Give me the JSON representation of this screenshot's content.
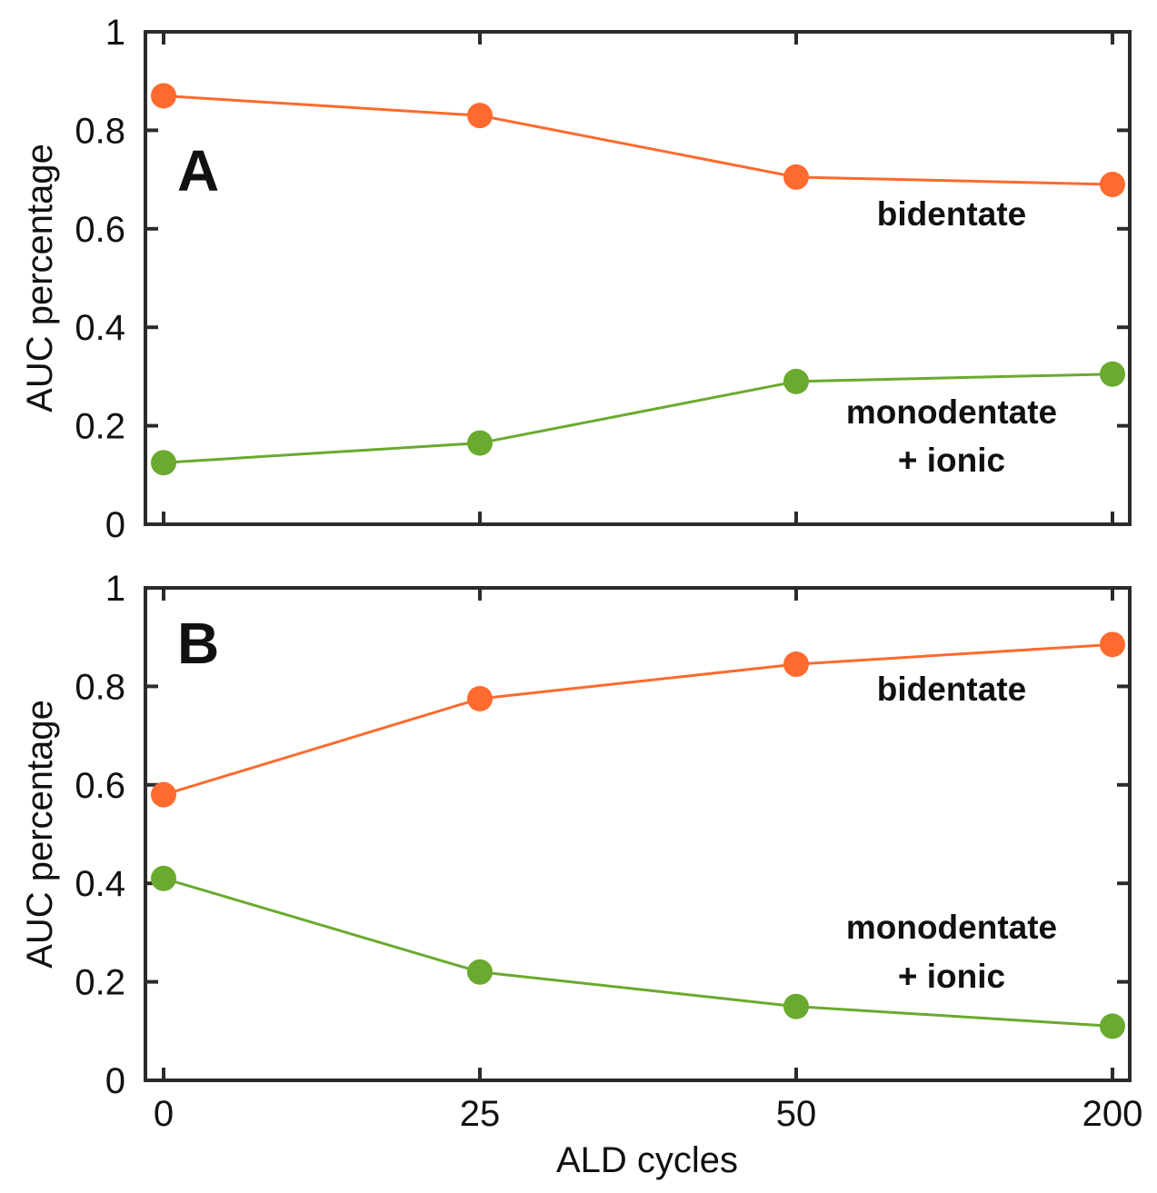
{
  "chart_data": [
    {
      "type": "line",
      "panel": "A",
      "categories": [
        "0",
        "25",
        "50",
        "200"
      ],
      "xlabel": "",
      "ylabel": "AUC percentage",
      "ylim": [
        0,
        1
      ],
      "yticks": [
        "0",
        "0.2",
        "0.4",
        "0.6",
        "0.8",
        "1"
      ],
      "series": [
        {
          "name": "bidentate",
          "color": "#ff6a2f",
          "values": [
            0.87,
            0.83,
            0.705,
            0.69
          ]
        },
        {
          "name": "monodentate + ionic",
          "color": "#6aaa2e",
          "values": [
            0.125,
            0.165,
            0.29,
            0.305
          ]
        }
      ],
      "annotations": [
        {
          "series": "bidentate",
          "lines": [
            "bidentate"
          ]
        },
        {
          "series": "monodentate + ionic",
          "lines": [
            "monodentate",
            "+ ionic"
          ]
        }
      ]
    },
    {
      "type": "line",
      "panel": "B",
      "categories": [
        "0",
        "25",
        "50",
        "200"
      ],
      "xlabel": "ALD cycles",
      "ylabel": "AUC percentage",
      "ylim": [
        0,
        1
      ],
      "yticks": [
        "0",
        "0.2",
        "0.4",
        "0.6",
        "0.8",
        "1"
      ],
      "series": [
        {
          "name": "bidentate",
          "color": "#ff6a2f",
          "values": [
            0.58,
            0.775,
            0.845,
            0.885
          ]
        },
        {
          "name": "monodentate + ionic",
          "color": "#6aaa2e",
          "values": [
            0.41,
            0.22,
            0.15,
            0.11
          ]
        }
      ],
      "annotations": [
        {
          "series": "bidentate",
          "lines": [
            "bidentate"
          ]
        },
        {
          "series": "monodentate + ionic",
          "lines": [
            "monodentate",
            "+ ionic"
          ]
        }
      ]
    }
  ]
}
